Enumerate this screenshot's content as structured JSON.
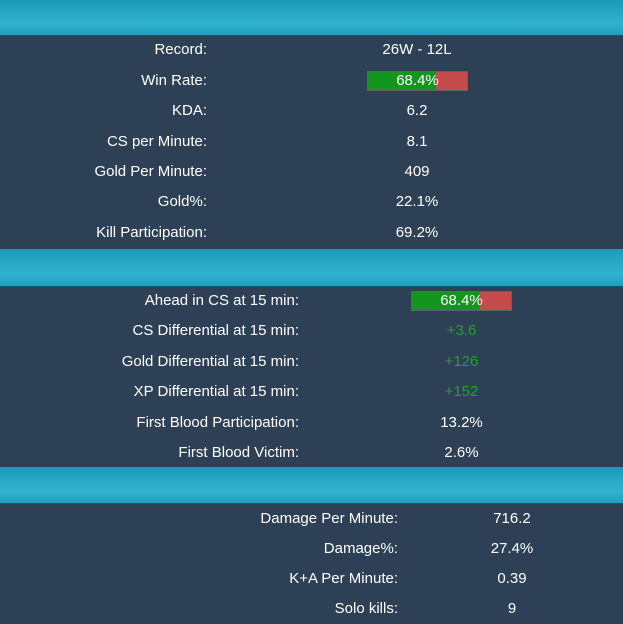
{
  "sections": [
    {
      "rows": [
        {
          "label": "Record:",
          "value": "26W - 12L"
        },
        {
          "label": "Win Rate:",
          "value": "68.4%",
          "bar_fraction": 0.684
        },
        {
          "label": "KDA:",
          "value": "6.2"
        },
        {
          "label": "CS per Minute:",
          "value": "8.1"
        },
        {
          "label": "Gold Per Minute:",
          "value": "409"
        },
        {
          "label": "Gold%:",
          "value": "22.1%"
        },
        {
          "label": "Kill Participation:",
          "value": "69.2%"
        }
      ]
    },
    {
      "rows": [
        {
          "label": "Ahead in CS at 15 min:",
          "value": "68.4%",
          "bar_fraction": 0.684
        },
        {
          "label": "CS Differential at 15 min:",
          "value": "+3.6"
        },
        {
          "label": "Gold Differential at 15 min:",
          "value": "+126"
        },
        {
          "label": "XP Differential at 15 min:",
          "value": "+152"
        },
        {
          "label": "First Blood Participation:",
          "value": "13.2%"
        },
        {
          "label": "First Blood Victim:",
          "value": "2.6%"
        }
      ]
    },
    {
      "rows": [
        {
          "label": "Damage Per Minute:",
          "value": "716.2"
        },
        {
          "label": "Damage%:",
          "value": "27.4%"
        },
        {
          "label": "K+A Per Minute:",
          "value": "0.39"
        },
        {
          "label": "Solo kills:",
          "value": "9"
        }
      ]
    }
  ],
  "colors": {
    "background": "#2d4055",
    "band": "#2aa9c6",
    "bar_positive": "#14961e",
    "bar_negative": "#c54c4b",
    "positive_text": "#23a234"
  }
}
